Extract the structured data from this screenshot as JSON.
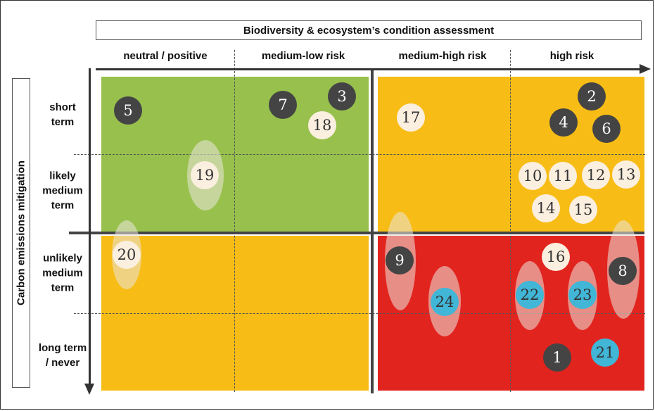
{
  "title": "Biodiversity & ecosystem’s condition assessment",
  "y_axis_title": "Carbon emissions mitigation",
  "columns": [
    "neutral / positive",
    "medium-low risk",
    "medium-high risk",
    "high risk"
  ],
  "rows": [
    {
      "lines": [
        "short",
        "term"
      ]
    },
    {
      "lines": [
        "likely",
        "medium",
        "term"
      ]
    },
    {
      "lines": [
        "unlikely",
        "medium",
        "term"
      ]
    },
    {
      "lines": [
        "long term",
        "/ never"
      ]
    }
  ],
  "colors": {
    "green": "#97c14c",
    "yellow": "#f7bd16",
    "red": "#e2241f",
    "dark_marker": "#444444",
    "cream_marker": "#fbefdf",
    "blue_marker": "#41b6d6"
  },
  "markers": {
    "m1": "1",
    "m2": "2",
    "m3": "3",
    "m4": "4",
    "m5": "5",
    "m6": "6",
    "m7": "7",
    "m8": "8",
    "m9": "9",
    "m10": "10",
    "m11": "11",
    "m12": "12",
    "m13": "13",
    "m14": "14",
    "m15": "15",
    "m16": "16",
    "m17": "17",
    "m18": "18",
    "m19": "19",
    "m20": "20",
    "m21": "21",
    "m22": "22",
    "m23": "23",
    "m24": "24"
  }
}
